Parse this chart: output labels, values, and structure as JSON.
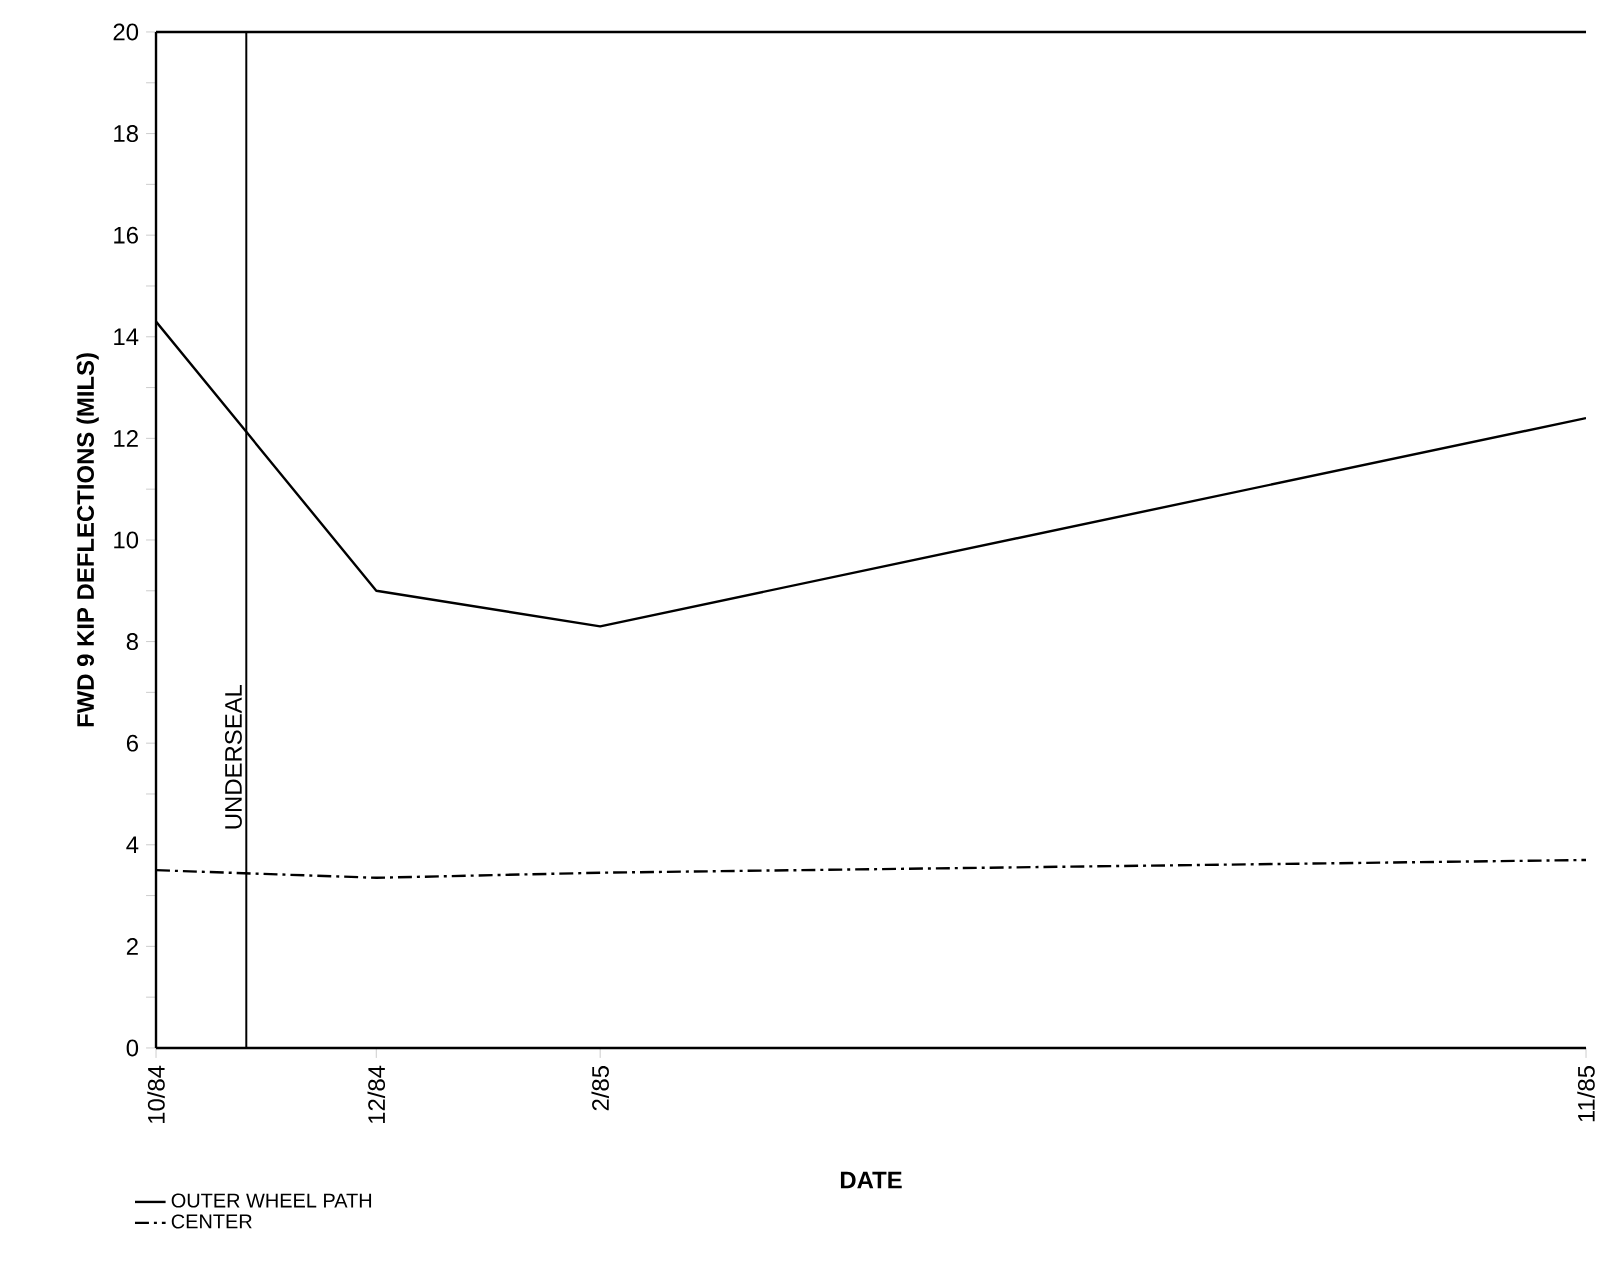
{
  "chart_data": {
    "type": "line",
    "xlabel": "DATE",
    "ylabel": "FWD 9 KIP DEFLECTIONS (MILS)",
    "x": [
      "1984-10",
      "1984-12",
      "1985-02",
      "1985-11"
    ],
    "series": [
      {
        "name": "OUTER WHEEL PATH",
        "color": "#000000",
        "line_style": "solid",
        "values": [
          14.3,
          9.0,
          8.3,
          12.4
        ]
      },
      {
        "name": "CENTER",
        "color": "#000000",
        "line_style": "dashdot",
        "values": [
          3.5,
          3.35,
          3.45,
          3.7
        ]
      }
    ],
    "xlim": [
      "1984-10",
      "1985-11"
    ],
    "xticks": [
      {
        "value": "1984-10",
        "label": "10/84"
      },
      {
        "value": "1984-12",
        "label": "12/84"
      },
      {
        "value": "1985-02",
        "label": "2/85"
      },
      {
        "value": "1985-11",
        "label": "11/85"
      }
    ],
    "ylim": [
      0,
      20
    ],
    "yticks": [
      0,
      {
        "value": 1,
        "label": null
      },
      2,
      {
        "value": 3,
        "label": null
      },
      4,
      {
        "value": 5,
        "label": null
      },
      6,
      {
        "value": 7,
        "label": null
      },
      8,
      {
        "value": 9,
        "label": null
      },
      10,
      {
        "value": 11,
        "label": null
      },
      12,
      {
        "value": 13,
        "label": null
      },
      14,
      {
        "value": 15,
        "label": null
      },
      16,
      {
        "value": 17,
        "label": null
      },
      18,
      {
        "value": 19,
        "label": null
      },
      20
    ],
    "ref_lines": [
      {
        "axis": "x",
        "value": "1984-10-26",
        "label": "UNDERSEAL",
        "color": "#000000"
      }
    ],
    "grid": false,
    "marker": "none",
    "legend": "bottom left"
  }
}
